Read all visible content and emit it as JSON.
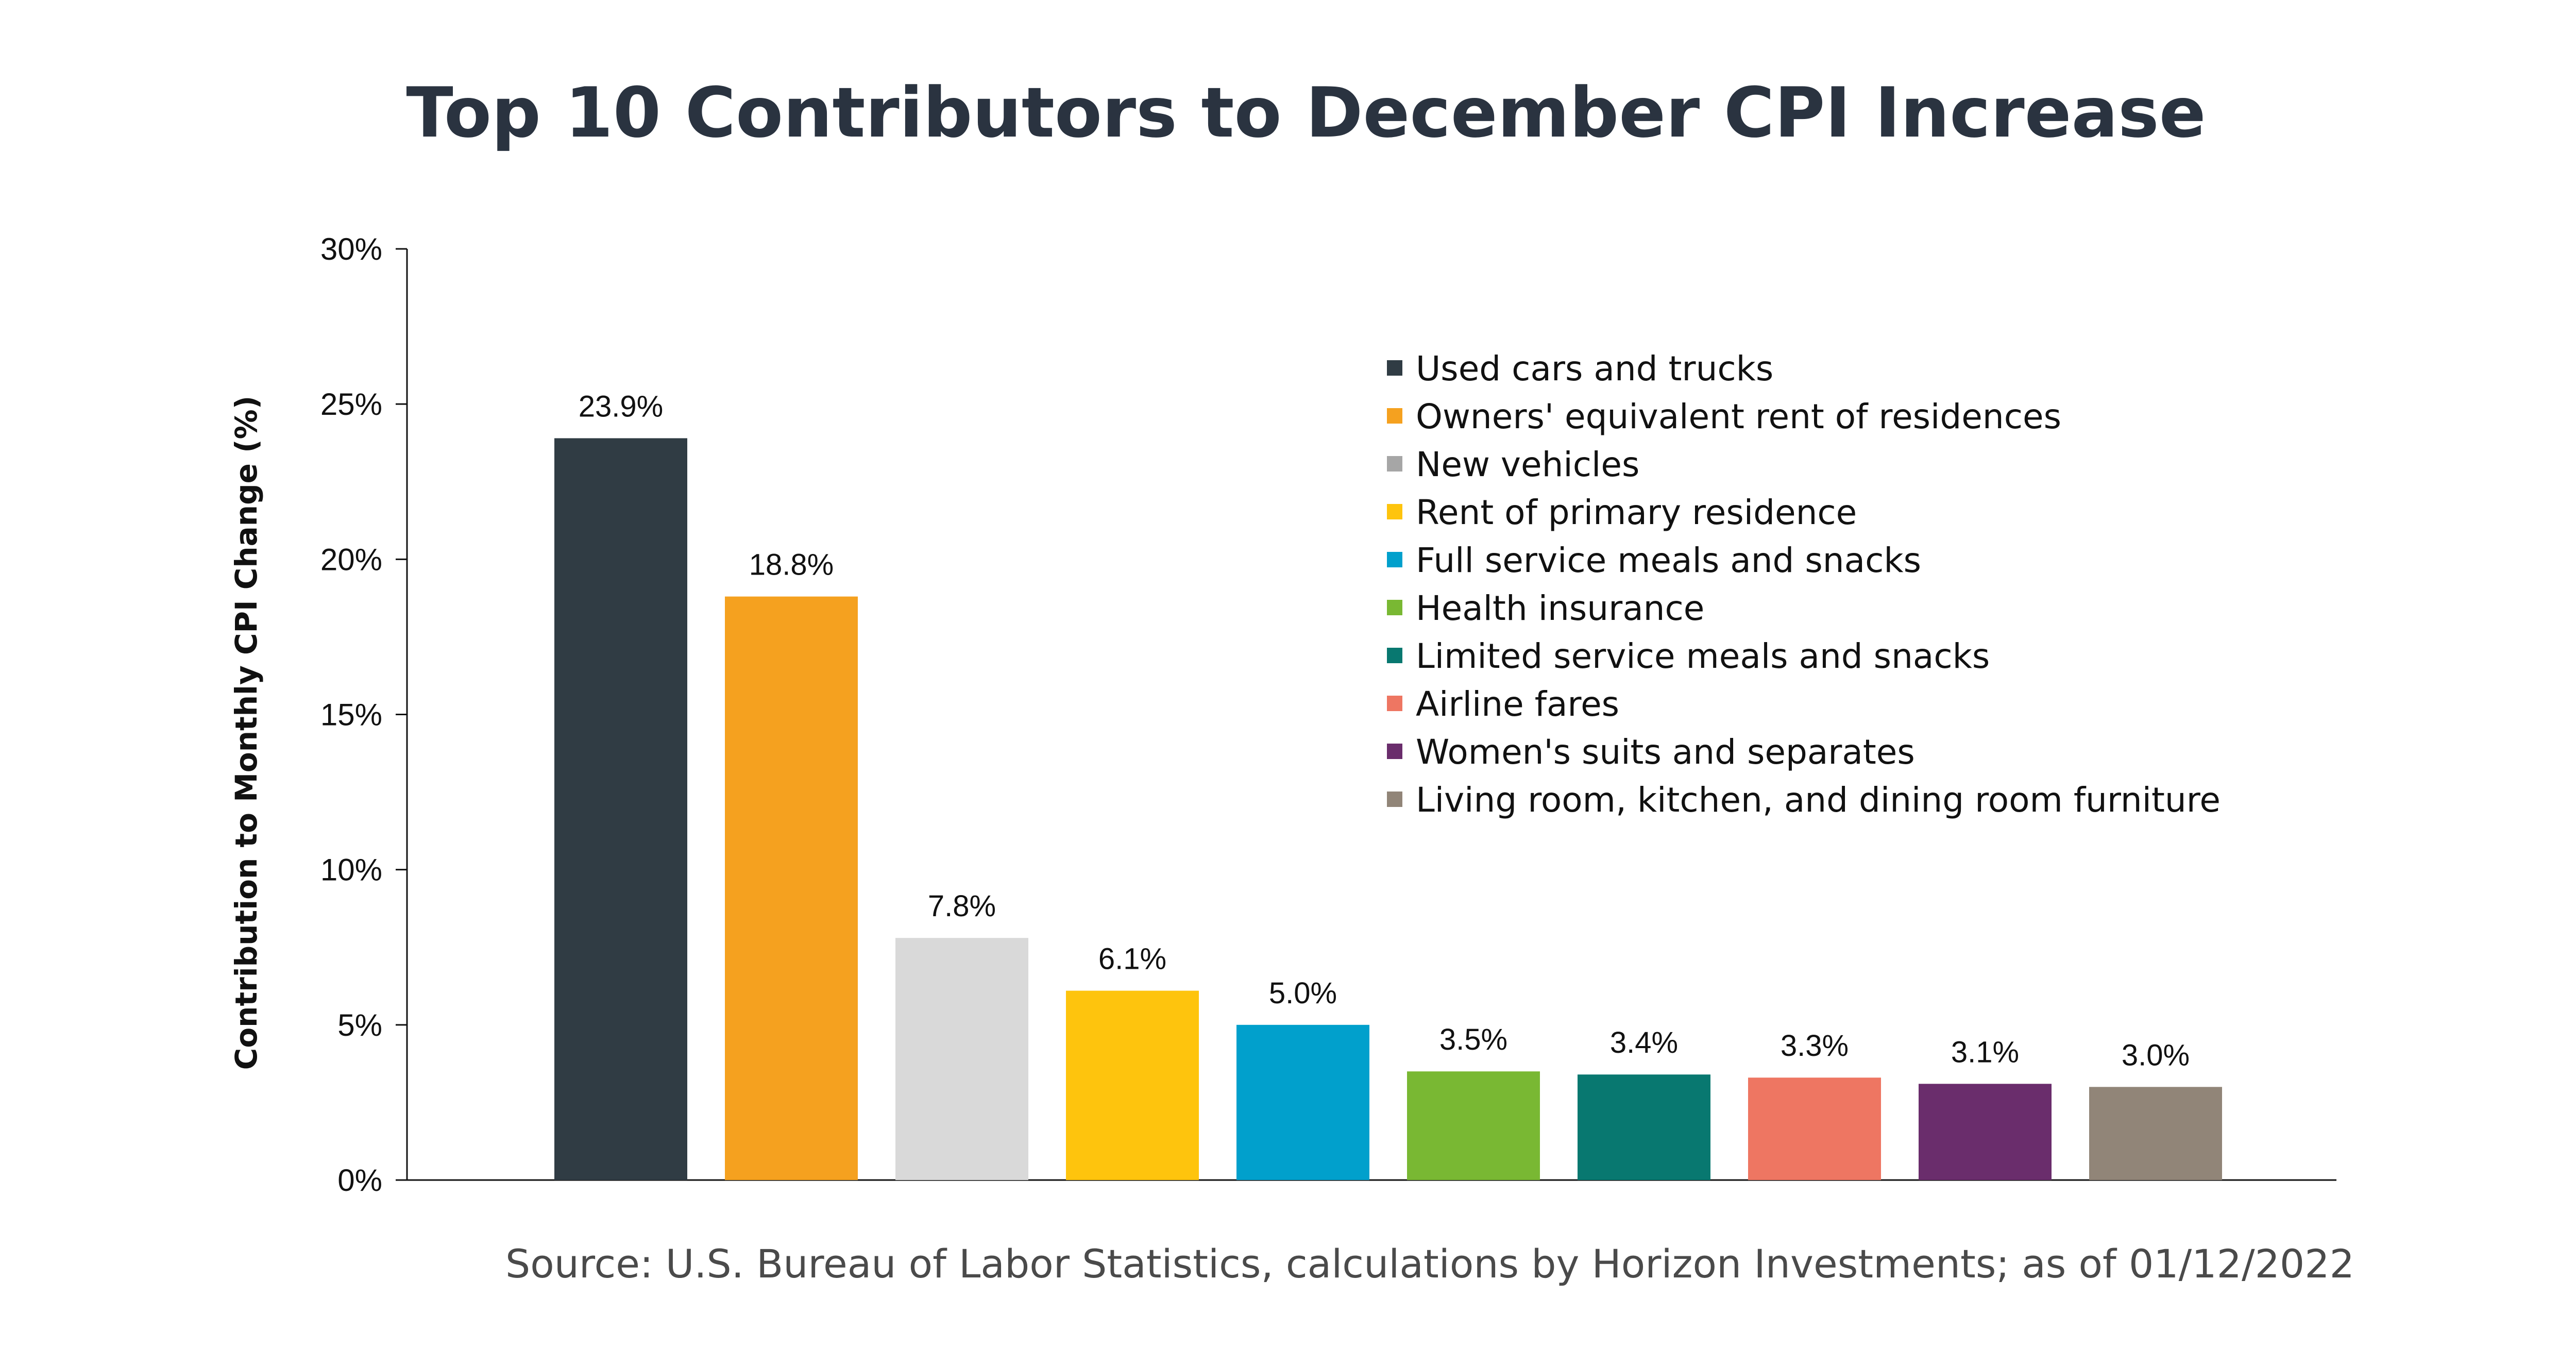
{
  "chart_data": {
    "type": "bar",
    "title": "Top 10 Contributors to December CPI Increase",
    "xlabel": "",
    "ylabel": "Contribution to Monthly CPI Change (%)",
    "ylim": [
      0,
      30
    ],
    "yticks": [
      0,
      5,
      10,
      15,
      20,
      25,
      30
    ],
    "ytick_labels": [
      "0%",
      "5%",
      "10%",
      "15%",
      "20%",
      "25%",
      "30%"
    ],
    "grid": false,
    "legend_position": "top-right",
    "categories": [
      "Used cars and trucks",
      "Owners' equivalent rent of residences",
      "New vehicles",
      "Rent of primary residence",
      "Full service meals and snacks",
      "Health insurance",
      "Limited service meals and snacks",
      "Airline fares",
      "Women's suits and separates",
      "Living room, kitchen, and dining room furniture"
    ],
    "values": [
      23.9,
      18.8,
      7.8,
      6.1,
      5.0,
      3.5,
      3.4,
      3.3,
      3.1,
      3.0
    ],
    "value_labels": [
      "23.9%",
      "18.8%",
      "7.8%",
      "6.1%",
      "5.0%",
      "3.5%",
      "3.4%",
      "3.3%",
      "3.1%",
      "3.0%"
    ],
    "colors": [
      "#303c44",
      "#f5a11f",
      "#d9d9d9",
      "#fec40d",
      "#01a0cc",
      "#79b833",
      "#087870",
      "#ee7662",
      "#6a2d6c",
      "#918578"
    ],
    "legend_colors": [
      "#303c44",
      "#f5a11f",
      "#a6a6a6",
      "#fec40d",
      "#01a0cc",
      "#79b833",
      "#087870",
      "#ee7662",
      "#6a2d6c",
      "#918578"
    ],
    "source": "Source: U.S. Bureau of Labor Statistics, calculations by Horizon Investments; as of 01/12/2022"
  }
}
